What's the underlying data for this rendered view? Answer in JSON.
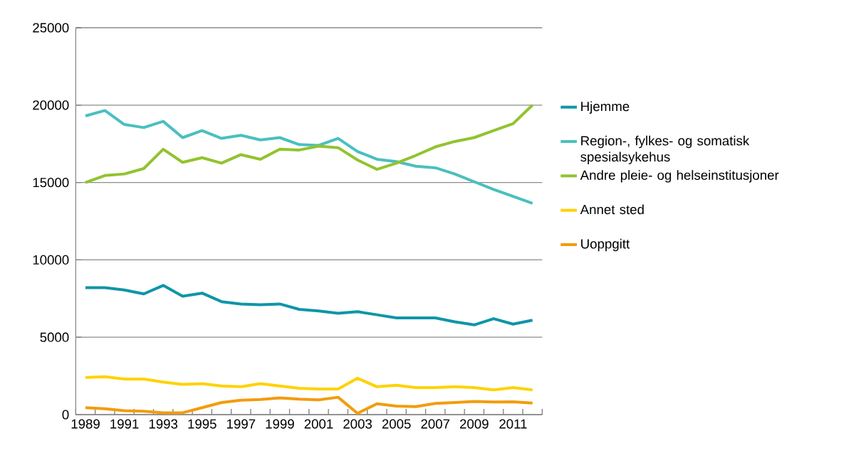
{
  "chart_data": {
    "type": "line",
    "categories": [
      "1989",
      null,
      "1991",
      null,
      "1993",
      null,
      "1995",
      null,
      "1997",
      null,
      "1999",
      null,
      "2001",
      null,
      "2003",
      null,
      "2005",
      null,
      "2007",
      null,
      "2009",
      null,
      "2011",
      null
    ],
    "series": [
      {
        "name": "Hjemme",
        "color": "#0f95a8",
        "values": [
          8200,
          8200,
          8050,
          7800,
          8350,
          7650,
          7850,
          7300,
          7150,
          7100,
          7150,
          6800,
          6700,
          6550,
          6650,
          6450,
          6250,
          6250,
          6250,
          6000,
          5800,
          6200,
          5850,
          6100
        ]
      },
      {
        "name": "Region-, fylkes- og somatisk spesialsykehus",
        "color": "#4bbfbf",
        "values": [
          19300,
          19650,
          18750,
          18550,
          18950,
          17900,
          18350,
          17850,
          18050,
          17750,
          17900,
          17450,
          17400,
          17850,
          17000,
          16500,
          16350,
          16050,
          15950,
          15550,
          15050,
          14550,
          14100,
          13650
        ]
      },
      {
        "name": "Andre pleie- og helseinstitusjoner",
        "color": "#92c32e",
        "values": [
          15000,
          15450,
          15550,
          15900,
          17150,
          16300,
          16600,
          16250,
          16800,
          16500,
          17150,
          17100,
          17350,
          17250,
          16450,
          15850,
          16250,
          16750,
          17300,
          17650,
          17900,
          18350,
          18800,
          20000
        ]
      },
      {
        "name": "Annet sted",
        "color": "#ffd200",
        "values": [
          2400,
          2450,
          2300,
          2300,
          2100,
          1950,
          2000,
          1850,
          1800,
          2000,
          1850,
          1700,
          1650,
          1650,
          2350,
          1800,
          1900,
          1750,
          1750,
          1800,
          1750,
          1600,
          1750,
          1600
        ]
      },
      {
        "name": "Uoppgitt",
        "color": "#f29c0c",
        "values": [
          450,
          380,
          250,
          220,
          120,
          120,
          450,
          780,
          930,
          980,
          1080,
          1000,
          950,
          1120,
          80,
          700,
          550,
          520,
          720,
          780,
          850,
          820,
          830,
          750
        ]
      }
    ],
    "ylim": [
      0,
      25000
    ],
    "yticks": [
      0,
      5000,
      10000,
      15000,
      20000,
      25000
    ],
    "grid": "y",
    "legend": "right",
    "marker": "none",
    "line_style": "solid"
  }
}
